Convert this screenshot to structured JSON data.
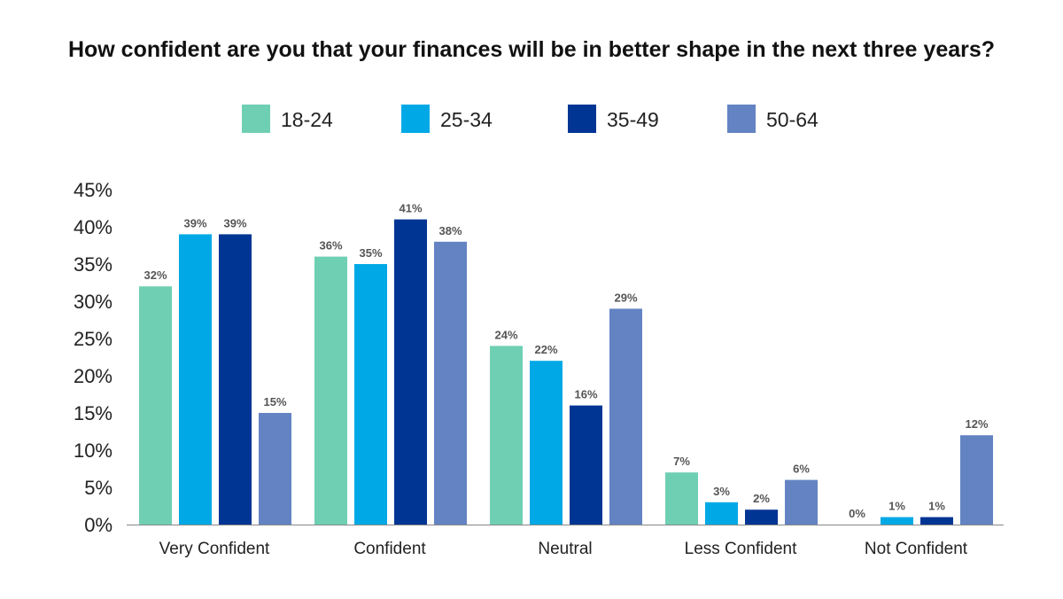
{
  "chart_data": {
    "type": "bar",
    "title": "How confident are you that your finances will be in better shape in the next three years?",
    "categories": [
      "Very Confident",
      "Confident",
      "Neutral",
      "Less Confident",
      "Not Confident"
    ],
    "series": [
      {
        "name": "18-24",
        "color": "#6fcfb2",
        "values": [
          32,
          36,
          24,
          7,
          0
        ]
      },
      {
        "name": "25-34",
        "color": "#00a9e6",
        "values": [
          39,
          35,
          22,
          3,
          1
        ]
      },
      {
        "name": "35-49",
        "color": "#003594",
        "values": [
          39,
          41,
          16,
          2,
          1
        ]
      },
      {
        "name": "50-64",
        "color": "#6383c3",
        "values": [
          15,
          38,
          29,
          6,
          12
        ]
      }
    ],
    "ylim": [
      0,
      45
    ],
    "yticks": [
      "0%",
      "5%",
      "10%",
      "15%",
      "20%",
      "25%",
      "30%",
      "35%",
      "40%",
      "45%"
    ],
    "legend": "top",
    "grid": false,
    "data_label_suffix": "%"
  }
}
